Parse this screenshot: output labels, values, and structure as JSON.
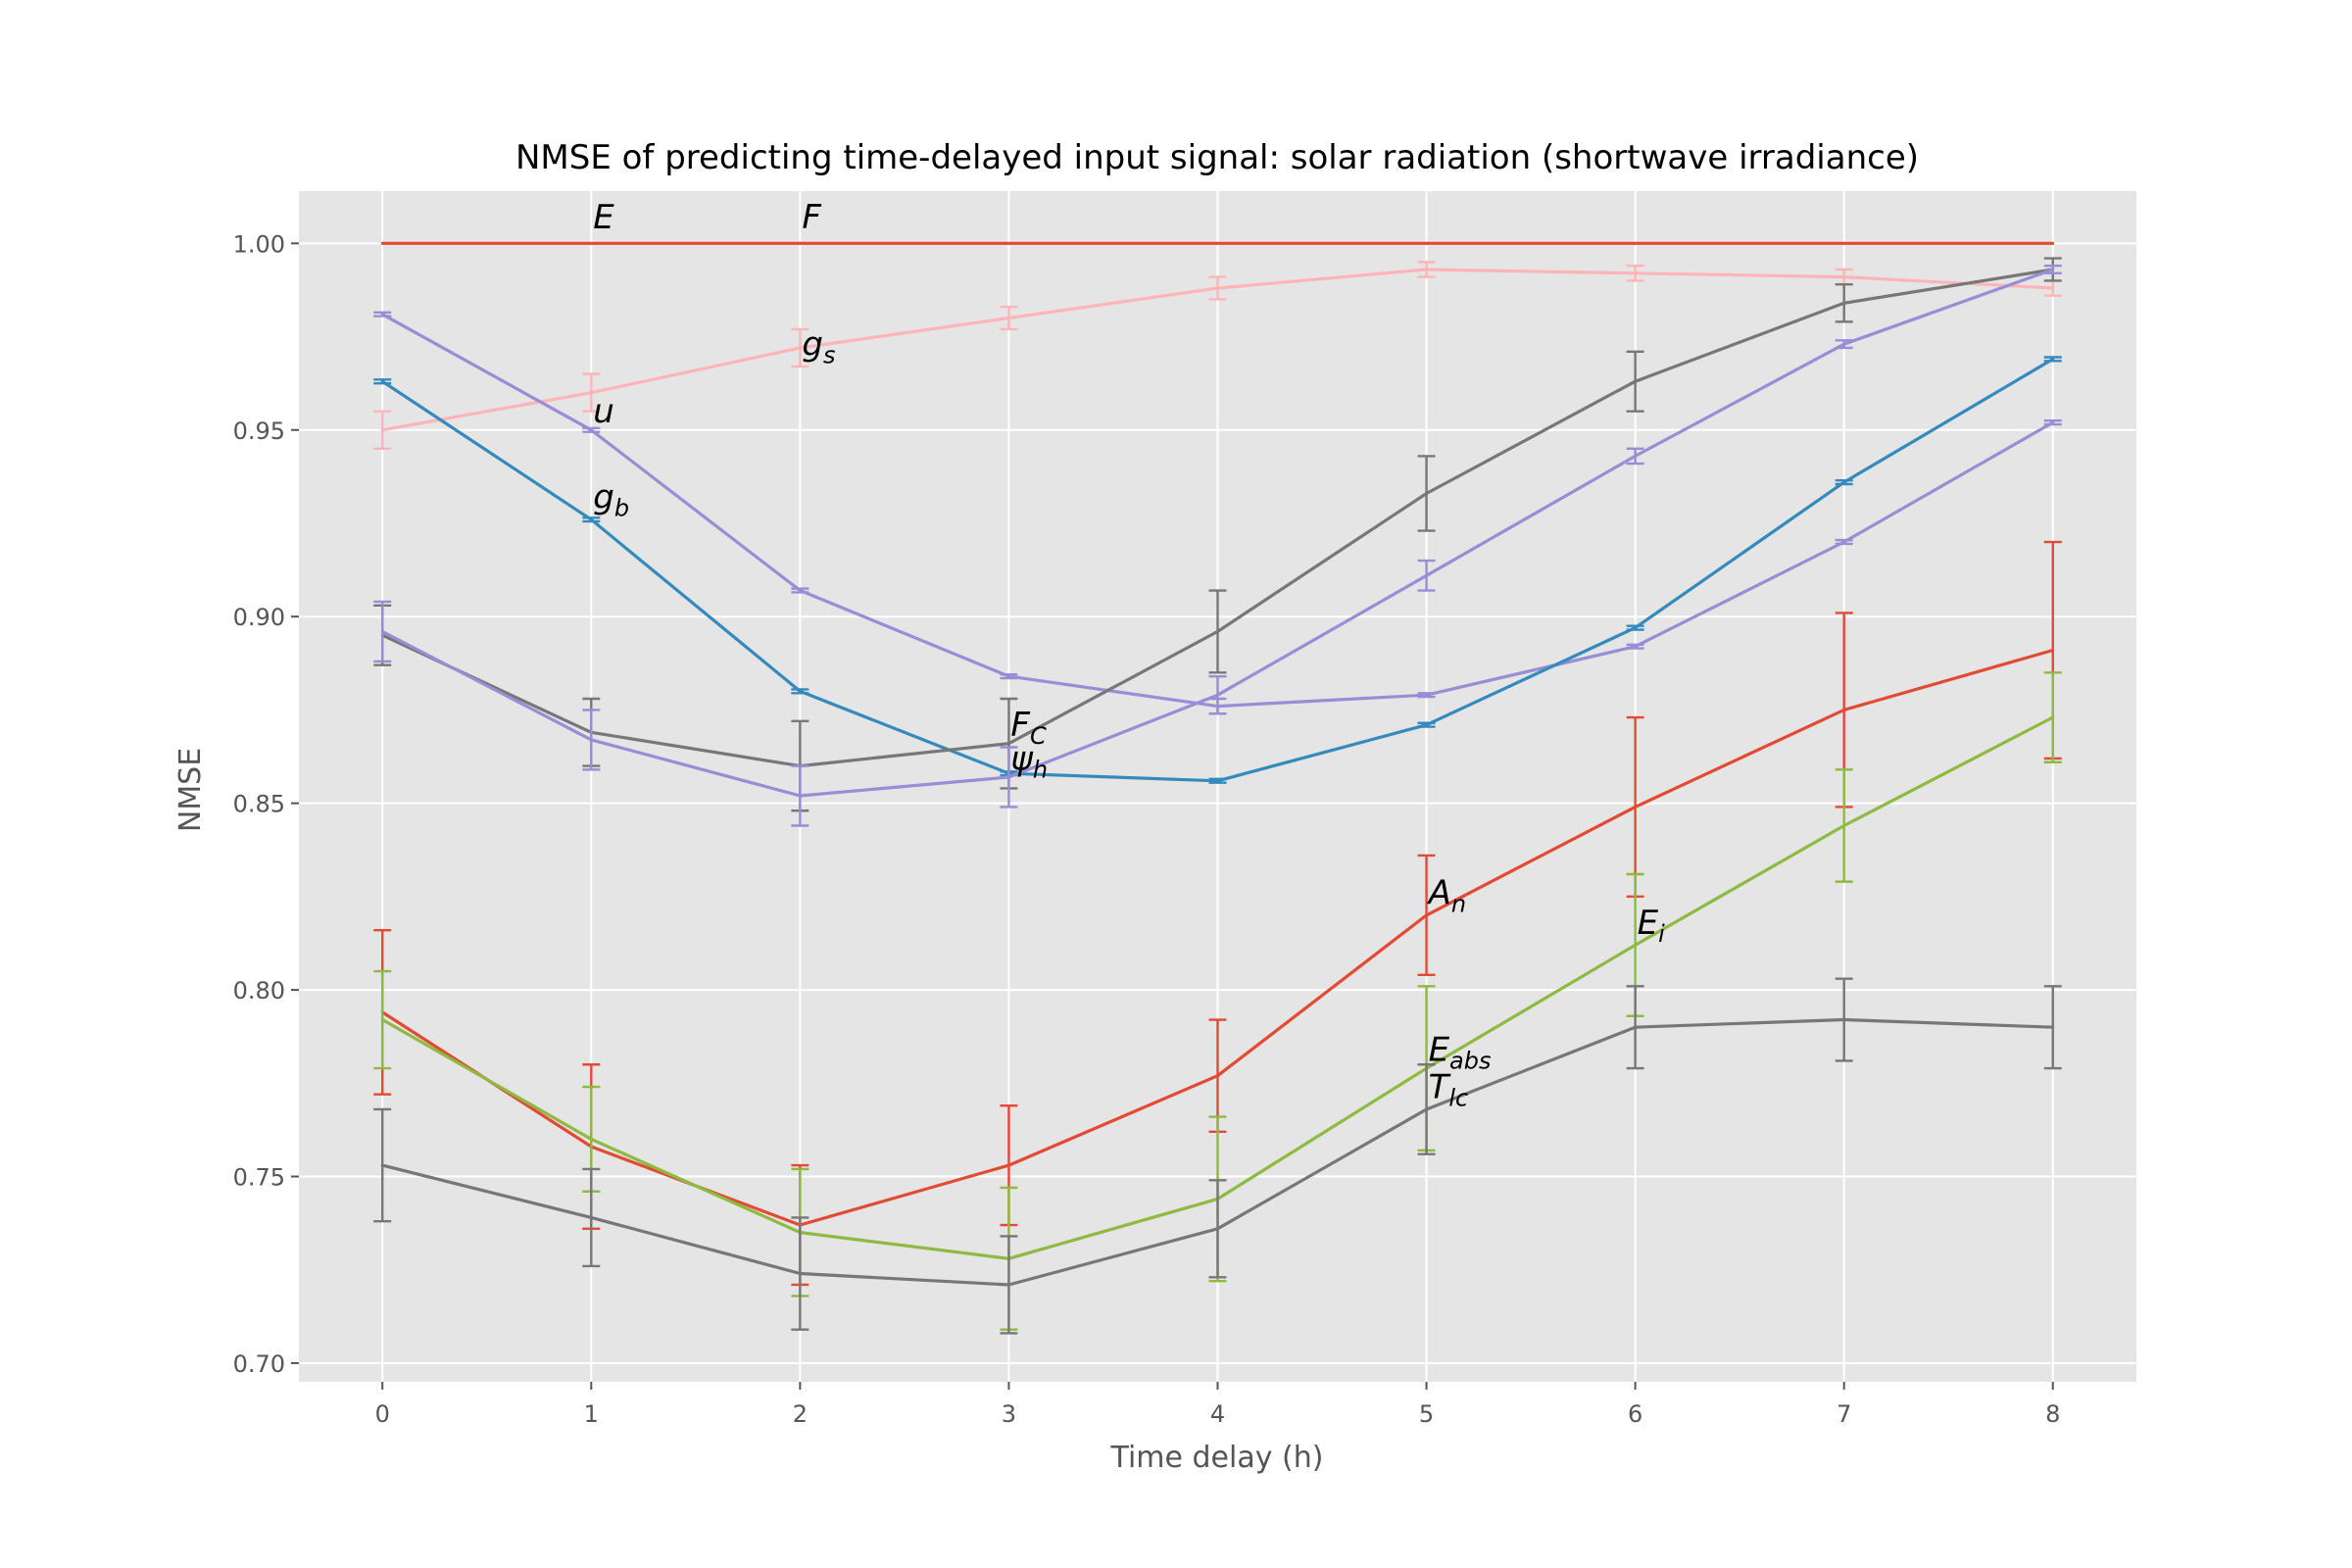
{
  "chart_data": {
    "type": "line",
    "title": "NMSE of predicting time-delayed input signal: solar radiation (shortwave irradiance)",
    "xlabel": "Time delay (h)",
    "ylabel": "NMSE",
    "xlim": [
      -0.4,
      8.4
    ],
    "ylim": [
      0.695,
      1.014
    ],
    "xticks": [
      "0",
      "1",
      "2",
      "3",
      "4",
      "5",
      "6",
      "7",
      "8"
    ],
    "yticks": [
      "0.70",
      "0.75",
      "0.80",
      "0.85",
      "0.90",
      "0.95",
      "1.00"
    ],
    "grid": true,
    "x": [
      0,
      1,
      2,
      3,
      4,
      5,
      6,
      7,
      8
    ],
    "series": [
      {
        "color": "#E24A33",
        "values": [
          1.0,
          1.0,
          1.0,
          1.0,
          1.0,
          1.0,
          1.0,
          1.0,
          1.0
        ],
        "errors": [
          0,
          0,
          0,
          0,
          0,
          0,
          0,
          0,
          0
        ]
      },
      {
        "color": "#FFB5B8",
        "values": [
          0.95,
          0.96,
          0.972,
          0.98,
          0.988,
          0.993,
          0.992,
          0.991,
          0.988
        ],
        "errors": [
          0.005,
          0.005,
          0.005,
          0.003,
          0.003,
          0.002,
          0.002,
          0.002,
          0.002
        ]
      },
      {
        "color": "#988ED5",
        "values": [
          0.981,
          0.95,
          0.907,
          0.884,
          0.876,
          0.879,
          0.892,
          0.92,
          0.952
        ],
        "errors": [
          0.0005,
          0.0005,
          0.0005,
          0.0005,
          0.002,
          0.0005,
          0.0005,
          0.0005,
          0.0005
        ]
      },
      {
        "color": "#348ABD",
        "values": [
          0.963,
          0.926,
          0.88,
          0.858,
          0.856,
          0.871,
          0.897,
          0.936,
          0.969
        ],
        "errors": [
          0.0005,
          0.0005,
          0.0005,
          0.0005,
          0.0005,
          0.0005,
          0.0005,
          0.0005,
          0.0005
        ]
      },
      {
        "color": "#777777",
        "values": [
          0.895,
          0.869,
          0.86,
          0.866,
          0.896,
          0.933,
          0.963,
          0.984,
          0.993
        ],
        "errors": [
          0.008,
          0.009,
          0.012,
          0.012,
          0.011,
          0.01,
          0.008,
          0.005,
          0.003
        ]
      },
      {
        "color": "#988ED5",
        "values": [
          0.896,
          0.867,
          0.852,
          0.857,
          0.879,
          0.911,
          0.943,
          0.973,
          0.993
        ],
        "errors": [
          0.008,
          0.008,
          0.008,
          0.008,
          0.005,
          0.004,
          0.002,
          0.001,
          0.001
        ]
      },
      {
        "color": "#E24A33",
        "values": [
          0.794,
          0.758,
          0.737,
          0.753,
          0.777,
          0.82,
          0.849,
          0.875,
          0.891
        ],
        "errors": [
          0.022,
          0.022,
          0.016,
          0.016,
          0.015,
          0.016,
          0.024,
          0.026,
          0.029
        ]
      },
      {
        "color": "#8EBA42",
        "values": [
          0.792,
          0.76,
          0.735,
          0.728,
          0.744,
          0.779,
          0.812,
          0.844,
          0.873
        ],
        "errors": [
          0.013,
          0.014,
          0.017,
          0.019,
          0.022,
          0.022,
          0.019,
          0.015,
          0.012
        ]
      },
      {
        "color": "#777777",
        "values": [
          0.753,
          0.739,
          0.724,
          0.721,
          0.736,
          0.768,
          0.79,
          0.792,
          0.79
        ],
        "errors": [
          0.015,
          0.013,
          0.015,
          0.013,
          0.013,
          0.012,
          0.011,
          0.011,
          0.011
        ]
      }
    ],
    "annotations": [
      {
        "text": "E",
        "sub": "",
        "x": 1,
        "y": 1.004
      },
      {
        "text": "F",
        "sub": "",
        "x": 2,
        "y": 1.004
      },
      {
        "text": "g",
        "sub": "s",
        "x": 2,
        "y": 0.97
      },
      {
        "text": "u",
        "sub": "",
        "x": 1,
        "y": 0.952
      },
      {
        "text": "g",
        "sub": "b",
        "x": 1,
        "y": 0.929
      },
      {
        "text": "F",
        "sub": "C",
        "x": 3,
        "y": 0.868
      },
      {
        "text": "ψ",
        "sub": "h",
        "x": 3,
        "y": 0.859
      },
      {
        "text": "A",
        "sub": "n",
        "x": 5,
        "y": 0.823
      },
      {
        "text": "E",
        "sub": "i",
        "x": 6,
        "y": 0.815
      },
      {
        "text": "E",
        "sub": "abs",
        "x": 5,
        "y": 0.781
      },
      {
        "text": "T",
        "sub": "lc",
        "x": 5,
        "y": 0.771
      }
    ]
  }
}
